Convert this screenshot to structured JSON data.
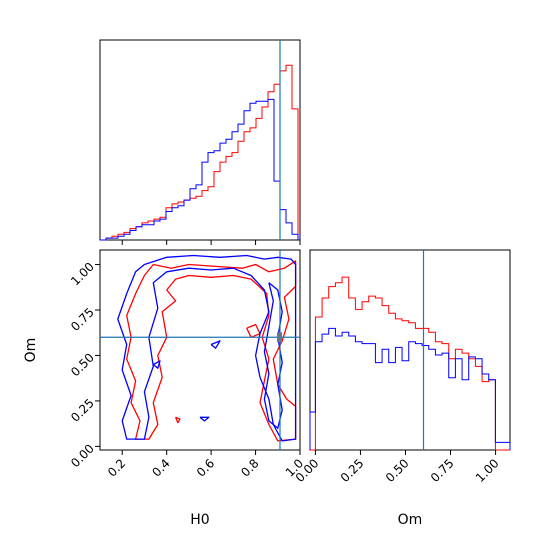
{
  "figure": {
    "type": "corner-plot"
  },
  "chart_data": [
    {
      "id": "h0-marginal",
      "type": "histogram",
      "xlabel": "",
      "ylabel": "",
      "xlim": [
        0.1,
        1.0
      ],
      "ylim": [
        0,
        1
      ],
      "truth_line": {
        "x": 0.91,
        "color": "#1f77b4"
      },
      "x_ticks": [
        0.2,
        0.4,
        0.6,
        0.8,
        1.0
      ],
      "bin_edges": [
        0.1,
        0.127,
        0.154,
        0.181,
        0.208,
        0.235,
        0.262,
        0.289,
        0.316,
        0.343,
        0.37,
        0.397,
        0.424,
        0.451,
        0.478,
        0.505,
        0.532,
        0.559,
        0.586,
        0.613,
        0.64,
        0.667,
        0.694,
        0.721,
        0.748,
        0.775,
        0.802,
        0.829,
        0.856,
        0.883,
        0.91,
        0.937,
        0.964,
        0.991
      ],
      "series": [
        {
          "color": "#ff0000",
          "values": [
            0.0,
            0.01,
            0.02,
            0.03,
            0.04,
            0.06,
            0.07,
            0.09,
            0.1,
            0.11,
            0.12,
            0.17,
            0.19,
            0.2,
            0.21,
            0.22,
            0.23,
            0.26,
            0.28,
            0.36,
            0.41,
            0.44,
            0.46,
            0.52,
            0.57,
            0.59,
            0.64,
            0.7,
            0.78,
            0.82,
            0.89,
            0.92,
            0.69
          ]
        },
        {
          "color": "#0000ff",
          "values": [
            0.0,
            0.01,
            0.01,
            0.02,
            0.03,
            0.05,
            0.07,
            0.08,
            0.08,
            0.1,
            0.11,
            0.15,
            0.17,
            0.18,
            0.21,
            0.27,
            0.29,
            0.41,
            0.46,
            0.47,
            0.51,
            0.53,
            0.57,
            0.61,
            0.68,
            0.72,
            0.73,
            0.73,
            0.74,
            0.31,
            0.16,
            0.09,
            0.03
          ]
        }
      ]
    },
    {
      "id": "h0-om-contour",
      "type": "contour",
      "xlabel": "H0",
      "ylabel": "Om",
      "xlim": [
        0.1,
        1.0
      ],
      "ylim": [
        -0.02,
        1.08
      ],
      "x_ticks": [
        0.2,
        0.4,
        0.6,
        0.8,
        1.0
      ],
      "y_ticks": [
        0.0,
        0.25,
        0.5,
        0.75,
        1.0
      ],
      "truth": {
        "H0": 0.91,
        "Om": 0.6,
        "color": "#1f77b4"
      },
      "series": [
        {
          "color": "#ff0000",
          "levels": [
            [
              [
                0.34,
                1.0
              ],
              [
                0.42,
                0.98
              ],
              [
                0.5,
                1.0
              ],
              [
                0.62,
                0.99
              ],
              [
                0.74,
                0.98
              ],
              [
                0.8,
                1.0
              ],
              [
                0.86,
                0.96
              ],
              [
                0.93,
                0.98
              ],
              [
                0.98,
                1.02
              ],
              [
                0.98,
                0.88
              ],
              [
                0.93,
                0.82
              ],
              [
                0.95,
                0.7
              ],
              [
                0.92,
                0.58
              ],
              [
                0.88,
                0.48
              ],
              [
                0.9,
                0.34
              ],
              [
                0.94,
                0.26
              ],
              [
                0.98,
                0.22
              ],
              [
                0.98,
                0.04
              ],
              [
                0.9,
                0.03
              ],
              [
                0.86,
                0.12
              ],
              [
                0.82,
                0.24
              ],
              [
                0.84,
                0.36
              ],
              [
                0.86,
                0.48
              ],
              [
                0.83,
                0.6
              ],
              [
                0.86,
                0.72
              ],
              [
                0.85,
                0.84
              ],
              [
                0.78,
                0.92
              ],
              [
                0.7,
                0.94
              ],
              [
                0.6,
                0.93
              ],
              [
                0.5,
                0.94
              ],
              [
                0.44,
                0.92
              ],
              [
                0.4,
                0.86
              ],
              [
                0.44,
                0.8
              ],
              [
                0.38,
                0.74
              ],
              [
                0.4,
                0.6
              ],
              [
                0.36,
                0.5
              ],
              [
                0.38,
                0.38
              ],
              [
                0.34,
                0.24
              ],
              [
                0.36,
                0.12
              ],
              [
                0.32,
                0.04
              ],
              [
                0.26,
                0.04
              ],
              [
                0.28,
                0.14
              ],
              [
                0.24,
                0.24
              ],
              [
                0.26,
                0.36
              ],
              [
                0.22,
                0.48
              ],
              [
                0.24,
                0.6
              ],
              [
                0.22,
                0.72
              ],
              [
                0.26,
                0.84
              ],
              [
                0.3,
                0.94
              ],
              [
                0.34,
                1.0
              ]
            ],
            [
              [
                0.44,
                0.16
              ],
              [
                0.46,
                0.15
              ],
              [
                0.45,
                0.13
              ],
              [
                0.44,
                0.16
              ]
            ],
            [
              [
                0.76,
                0.65
              ],
              [
                0.8,
                0.67
              ],
              [
                0.82,
                0.62
              ],
              [
                0.78,
                0.6
              ],
              [
                0.76,
                0.65
              ]
            ]
          ]
        },
        {
          "color": "#0000ff",
          "levels": [
            [
              [
                0.3,
                1.0
              ],
              [
                0.4,
                1.04
              ],
              [
                0.52,
                1.05
              ],
              [
                0.64,
                1.04
              ],
              [
                0.76,
                1.05
              ],
              [
                0.84,
                1.03
              ],
              [
                0.9,
                1.04
              ],
              [
                0.96,
                1.03
              ],
              [
                0.98,
                1.0
              ],
              [
                0.98,
                0.04
              ],
              [
                0.92,
                0.03
              ],
              [
                0.88,
                0.12
              ],
              [
                0.86,
                0.26
              ],
              [
                0.82,
                0.38
              ],
              [
                0.8,
                0.5
              ],
              [
                0.82,
                0.62
              ],
              [
                0.86,
                0.74
              ],
              [
                0.84,
                0.86
              ],
              [
                0.78,
                0.94
              ],
              [
                0.7,
                0.98
              ],
              [
                0.6,
                0.97
              ],
              [
                0.5,
                0.98
              ],
              [
                0.4,
                0.96
              ],
              [
                0.34,
                0.9
              ],
              [
                0.36,
                0.76
              ],
              [
                0.32,
                0.6
              ],
              [
                0.34,
                0.44
              ],
              [
                0.3,
                0.3
              ],
              [
                0.32,
                0.16
              ],
              [
                0.3,
                0.04
              ],
              [
                0.22,
                0.04
              ],
              [
                0.2,
                0.14
              ],
              [
                0.24,
                0.28
              ],
              [
                0.2,
                0.42
              ],
              [
                0.22,
                0.56
              ],
              [
                0.18,
                0.7
              ],
              [
                0.22,
                0.84
              ],
              [
                0.26,
                0.96
              ],
              [
                0.3,
                1.0
              ]
            ],
            [
              [
                0.86,
                0.9
              ],
              [
                0.88,
                0.8
              ],
              [
                0.86,
                0.66
              ],
              [
                0.84,
                0.52
              ],
              [
                0.86,
                0.4
              ],
              [
                0.84,
                0.26
              ],
              [
                0.86,
                0.14
              ],
              [
                0.9,
                0.1
              ],
              [
                0.92,
                0.2
              ],
              [
                0.9,
                0.34
              ],
              [
                0.92,
                0.46
              ],
              [
                0.9,
                0.6
              ],
              [
                0.92,
                0.74
              ],
              [
                0.9,
                0.86
              ],
              [
                0.86,
                0.9
              ]
            ],
            [
              [
                0.55,
                0.16
              ],
              [
                0.59,
                0.16
              ],
              [
                0.57,
                0.14
              ],
              [
                0.55,
                0.16
              ]
            ],
            [
              [
                0.6,
                0.56
              ],
              [
                0.64,
                0.58
              ],
              [
                0.62,
                0.54
              ],
              [
                0.6,
                0.56
              ]
            ],
            [
              [
                0.34,
                0.45
              ],
              [
                0.37,
                0.47
              ],
              [
                0.36,
                0.43
              ],
              [
                0.34,
                0.45
              ]
            ]
          ]
        }
      ]
    },
    {
      "id": "om-marginal",
      "type": "histogram",
      "xlabel": "Om",
      "ylabel": "",
      "xlim": [
        -0.03,
        1.08
      ],
      "ylim": [
        0,
        1
      ],
      "truth_line": {
        "x": 0.6,
        "color": "#1f77b4"
      },
      "x_ticks": [
        0.0,
        0.25,
        0.5,
        0.75,
        1.0
      ],
      "bin_edges": [
        -0.03,
        0.0,
        0.037,
        0.074,
        0.111,
        0.148,
        0.185,
        0.222,
        0.259,
        0.296,
        0.333,
        0.37,
        0.407,
        0.444,
        0.481,
        0.518,
        0.555,
        0.592,
        0.629,
        0.666,
        0.703,
        0.74,
        0.777,
        0.814,
        0.851,
        0.888,
        0.925,
        0.962,
        0.999,
        1.036,
        1.08
      ],
      "series": [
        {
          "color": "#ff0000",
          "values": [
            0.0,
            0.7,
            0.8,
            0.86,
            0.88,
            0.91,
            0.8,
            0.74,
            0.78,
            0.81,
            0.8,
            0.76,
            0.72,
            0.69,
            0.68,
            0.67,
            0.64,
            0.64,
            0.62,
            0.57,
            0.56,
            0.48,
            0.53,
            0.51,
            0.48,
            0.44,
            0.36,
            0.37,
            0.0,
            0.0
          ]
        },
        {
          "color": "#0000ff",
          "values": [
            0.2,
            0.57,
            0.61,
            0.64,
            0.6,
            0.62,
            0.6,
            0.57,
            0.56,
            0.56,
            0.46,
            0.53,
            0.46,
            0.54,
            0.47,
            0.57,
            0.56,
            0.55,
            0.53,
            0.5,
            0.51,
            0.38,
            0.48,
            0.37,
            0.49,
            0.48,
            0.4,
            0.37,
            0.04,
            0.04
          ]
        }
      ]
    }
  ]
}
